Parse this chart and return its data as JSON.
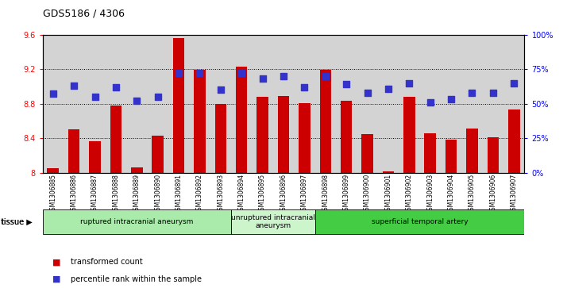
{
  "title": "GDS5186 / 4306",
  "samples": [
    "GSM1306885",
    "GSM1306886",
    "GSM1306887",
    "GSM1306888",
    "GSM1306889",
    "GSM1306890",
    "GSM1306891",
    "GSM1306892",
    "GSM1306893",
    "GSM1306894",
    "GSM1306895",
    "GSM1306896",
    "GSM1306897",
    "GSM1306898",
    "GSM1306899",
    "GSM1306900",
    "GSM1306901",
    "GSM1306902",
    "GSM1306903",
    "GSM1306904",
    "GSM1306905",
    "GSM1306906",
    "GSM1306907"
  ],
  "bar_values": [
    8.05,
    8.5,
    8.37,
    8.78,
    8.06,
    8.43,
    9.56,
    9.19,
    8.8,
    9.23,
    8.88,
    8.89,
    8.81,
    9.19,
    8.83,
    8.45,
    8.02,
    8.88,
    8.46,
    8.38,
    8.51,
    8.41,
    8.73
  ],
  "percentile_values": [
    57,
    63,
    55,
    62,
    52,
    55,
    72,
    72,
    60,
    72,
    68,
    70,
    62,
    70,
    64,
    58,
    61,
    65,
    51,
    53,
    58,
    58,
    65
  ],
  "ylim_left": [
    8.0,
    9.6
  ],
  "ylim_right": [
    0,
    100
  ],
  "yticks_left": [
    8.0,
    8.4,
    8.8,
    9.2,
    9.6
  ],
  "ytick_labels_left": [
    "8",
    "8.4",
    "8.8",
    "9.2",
    "9.6"
  ],
  "yticks_right": [
    0,
    25,
    50,
    75,
    100
  ],
  "ytick_labels_right": [
    "0%",
    "25%",
    "50%",
    "75%",
    "100%"
  ],
  "bar_color": "#cc0000",
  "dot_color": "#3333cc",
  "bar_width": 0.55,
  "dot_size": 28,
  "groups": [
    {
      "label": "ruptured intracranial aneurysm",
      "start": 0,
      "end": 9,
      "color": "#aaeaaa"
    },
    {
      "label": "unruptured intracranial\naneurysm",
      "start": 9,
      "end": 13,
      "color": "#ccf5cc"
    },
    {
      "label": "superficial temporal artery",
      "start": 13,
      "end": 23,
      "color": "#44cc44"
    }
  ],
  "background_color": "#d3d3d3",
  "font_size": 7,
  "title_fontsize": 9,
  "dot_marker": "s",
  "grid_dotted_ticks": [
    8.4,
    8.8,
    9.2
  ]
}
